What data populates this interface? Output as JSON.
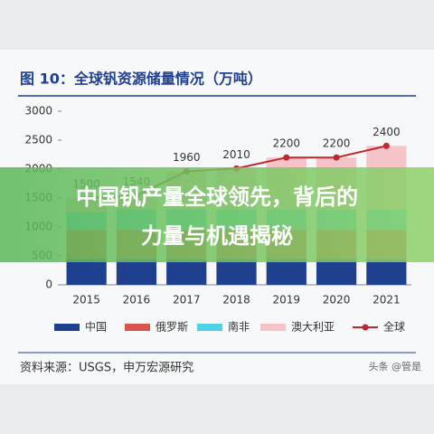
{
  "chart_data": {
    "type": "stacked-bar-line",
    "title": "图 10：全球钒资源储量情况（万吨）",
    "categories": [
      "2015",
      "2016",
      "2017",
      "2018",
      "2019",
      "2020",
      "2021"
    ],
    "series": [
      {
        "name": "中国",
        "color": "#1f3f8f",
        "values": [
          450,
          450,
          450,
          450,
          450,
          450,
          450
        ]
      },
      {
        "name": "俄罗斯",
        "color": "#d9534f",
        "values": [
          500,
          500,
          500,
          500,
          500,
          500,
          500
        ]
      },
      {
        "name": "南非",
        "color": "#4fd1e8",
        "values": [
          300,
          350,
          350,
          350,
          350,
          350,
          350
        ]
      },
      {
        "name": "澳大利亚",
        "color": "#f6c4c8",
        "values": [
          250,
          240,
          660,
          710,
          900,
          900,
          1100
        ]
      }
    ],
    "line": {
      "name": "全球",
      "color": "#c0262d",
      "values": [
        1500,
        1540,
        1960,
        2010,
        2200,
        2200,
        2400
      ]
    },
    "ylim": [
      0,
      3000
    ],
    "yticks": [
      0,
      500,
      1000,
      1500,
      2000,
      2500,
      3000
    ],
    "grid": false,
    "source": "资料来源：USGS，申万宏源研究"
  },
  "overlay": {
    "lines": [
      "中国钒产量全球领先，背后的",
      "力量与机遇揭秘"
    ],
    "watermark": "头条 @管是"
  }
}
